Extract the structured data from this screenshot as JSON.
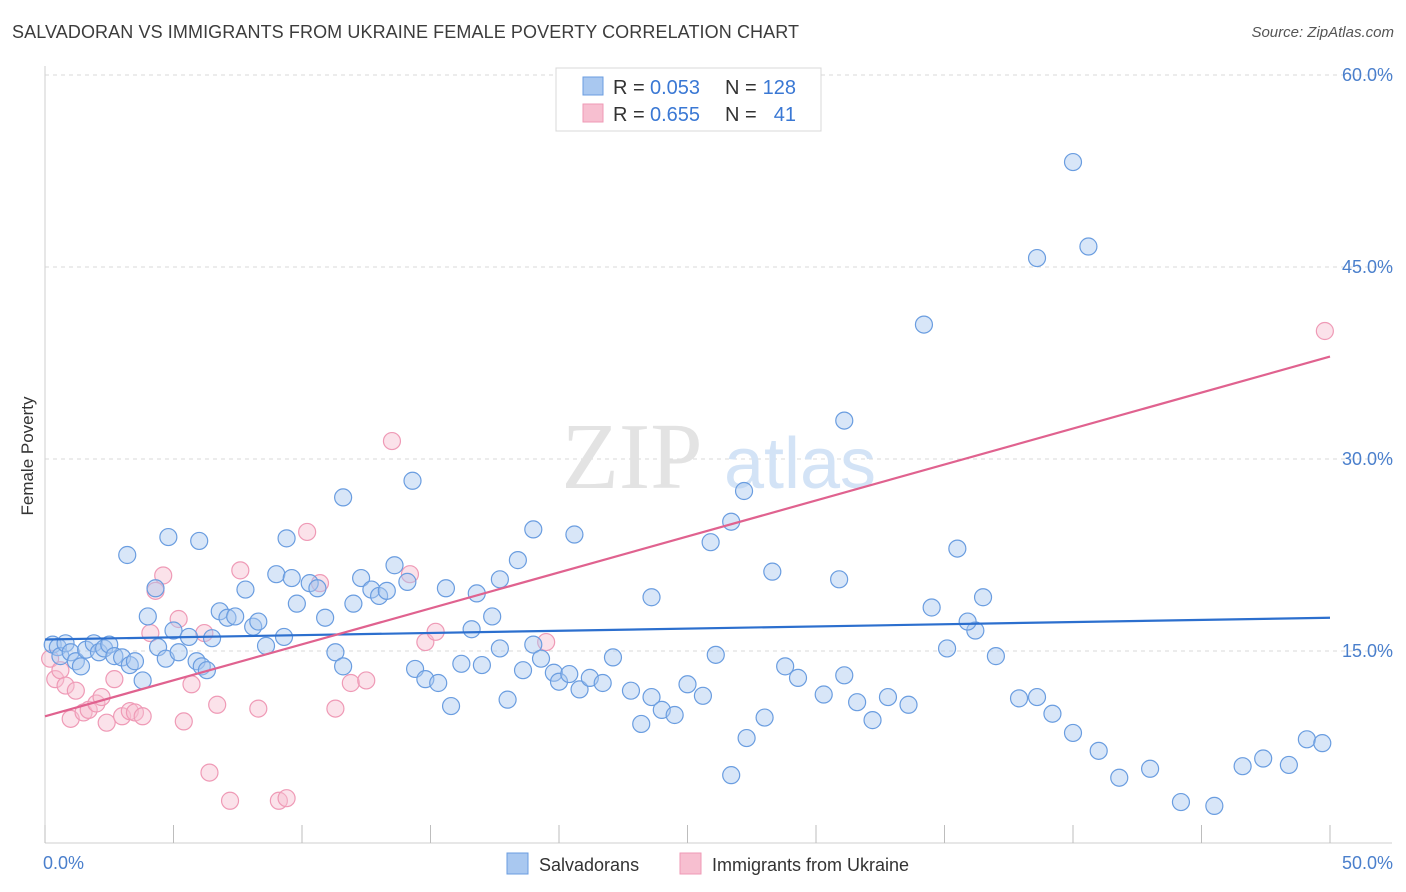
{
  "title": "SALVADORAN VS IMMIGRANTS FROM UKRAINE FEMALE POVERTY CORRELATION CHART",
  "source": "Source: ZipAtlas.com",
  "watermark": {
    "zip": "ZIP",
    "atlas": "atlas"
  },
  "colors": {
    "blue_fill": "#a9c8f0",
    "blue_stroke": "#6a9de0",
    "blue_line": "#2c6fce",
    "pink_fill": "#f7bfd0",
    "pink_stroke": "#ef9ab6",
    "pink_line": "#e0628f",
    "grid": "#d9d9d9",
    "axis_text": "#4a7fcc"
  },
  "legend": {
    "rows": [
      {
        "r_label": "R =",
        "r_value": "0.053",
        "n_label": "N =",
        "n_value": "128",
        "series": "blue"
      },
      {
        "r_label": "R =",
        "r_value": "0.655",
        "n_label": "N =",
        "n_value": "41",
        "series": "pink"
      }
    ]
  },
  "chart_data": {
    "type": "scatter",
    "title": "SALVADORAN VS IMMIGRANTS FROM UKRAINE FEMALE POVERTY CORRELATION CHART",
    "xlabel": "",
    "ylabel": "Female Poverty",
    "xlim": [
      0,
      50
    ],
    "ylim": [
      0,
      60
    ],
    "x_tick_labels": [
      "0.0%",
      "50.0%"
    ],
    "y_ticks": [
      15,
      30,
      45,
      60
    ],
    "y_tick_labels": [
      "15.0%",
      "30.0%",
      "45.0%",
      "60.0%"
    ],
    "grid": true,
    "legend_position": "top-center",
    "series": [
      {
        "name": "Salvadorans",
        "color": "blue",
        "r": 0.053,
        "n": 128,
        "trend": [
          [
            0,
            15.9
          ],
          [
            50,
            17.6
          ]
        ],
        "points": [
          [
            0.3,
            15.5
          ],
          [
            0.5,
            15.3
          ],
          [
            0.6,
            14.6
          ],
          [
            0.8,
            15.6
          ],
          [
            1.0,
            14.9
          ],
          [
            1.2,
            14.2
          ],
          [
            1.4,
            13.8
          ],
          [
            1.6,
            15.1
          ],
          [
            1.9,
            15.6
          ],
          [
            2.1,
            14.9
          ],
          [
            2.3,
            15.2
          ],
          [
            2.5,
            15.5
          ],
          [
            2.7,
            14.6
          ],
          [
            3.0,
            14.5
          ],
          [
            3.3,
            13.9
          ],
          [
            3.5,
            14.2
          ],
          [
            3.8,
            12.7
          ],
          [
            4.0,
            17.7
          ],
          [
            4.3,
            19.9
          ],
          [
            4.4,
            15.3
          ],
          [
            4.7,
            14.4
          ],
          [
            5.0,
            16.6
          ],
          [
            5.2,
            14.9
          ],
          [
            5.6,
            16.1
          ],
          [
            5.9,
            14.2
          ],
          [
            6.1,
            13.8
          ],
          [
            6.3,
            13.5
          ],
          [
            6.5,
            16.0
          ],
          [
            6.8,
            18.1
          ],
          [
            7.1,
            17.6
          ],
          [
            7.4,
            17.7
          ],
          [
            7.8,
            19.8
          ],
          [
            8.1,
            16.9
          ],
          [
            8.3,
            17.3
          ],
          [
            8.6,
            15.4
          ],
          [
            9.0,
            21.0
          ],
          [
            9.3,
            16.1
          ],
          [
            9.6,
            20.7
          ],
          [
            9.8,
            18.7
          ],
          [
            10.3,
            20.3
          ],
          [
            10.6,
            19.9
          ],
          [
            10.9,
            17.6
          ],
          [
            11.3,
            14.9
          ],
          [
            11.6,
            13.8
          ],
          [
            12.0,
            18.7
          ],
          [
            12.3,
            20.7
          ],
          [
            12.7,
            19.8
          ],
          [
            13.0,
            19.3
          ],
          [
            13.3,
            19.7
          ],
          [
            13.6,
            21.7
          ],
          [
            14.1,
            20.4
          ],
          [
            14.4,
            13.6
          ],
          [
            14.8,
            12.8
          ],
          [
            15.3,
            12.5
          ],
          [
            15.8,
            10.7
          ],
          [
            16.2,
            14.0
          ],
          [
            16.6,
            16.7
          ],
          [
            17.0,
            13.9
          ],
          [
            17.4,
            17.7
          ],
          [
            17.7,
            15.2
          ],
          [
            18.0,
            11.2
          ],
          [
            18.6,
            13.5
          ],
          [
            19.0,
            15.5
          ],
          [
            19.3,
            14.4
          ],
          [
            19.8,
            13.3
          ],
          [
            20.0,
            12.6
          ],
          [
            20.4,
            13.2
          ],
          [
            20.8,
            12.0
          ],
          [
            21.2,
            12.9
          ],
          [
            21.7,
            12.5
          ],
          [
            22.1,
            14.5
          ],
          [
            22.8,
            11.9
          ],
          [
            23.2,
            9.3
          ],
          [
            23.6,
            11.4
          ],
          [
            24.0,
            10.4
          ],
          [
            24.5,
            10.0
          ],
          [
            25.0,
            12.4
          ],
          [
            25.6,
            11.5
          ],
          [
            26.1,
            14.7
          ],
          [
            26.7,
            5.3
          ],
          [
            27.3,
            8.2
          ],
          [
            28.0,
            9.8
          ],
          [
            28.8,
            13.8
          ],
          [
            29.3,
            12.9
          ],
          [
            30.3,
            11.6
          ],
          [
            31.1,
            13.1
          ],
          [
            31.6,
            11.0
          ],
          [
            32.2,
            9.6
          ],
          [
            32.8,
            11.4
          ],
          [
            33.6,
            10.8
          ],
          [
            34.5,
            18.4
          ],
          [
            35.1,
            15.2
          ],
          [
            36.2,
            16.6
          ],
          [
            37.0,
            14.6
          ],
          [
            37.9,
            11.3
          ],
          [
            38.6,
            11.4
          ],
          [
            39.2,
            10.1
          ],
          [
            40.0,
            8.6
          ],
          [
            41.0,
            7.2
          ],
          [
            41.8,
            5.1
          ],
          [
            43.0,
            5.8
          ],
          [
            44.2,
            3.2
          ],
          [
            45.5,
            2.9
          ],
          [
            46.6,
            6.0
          ],
          [
            47.4,
            6.6
          ],
          [
            48.4,
            6.1
          ],
          [
            49.1,
            8.1
          ],
          [
            49.7,
            7.8
          ],
          [
            3.2,
            22.5
          ],
          [
            4.8,
            23.9
          ],
          [
            6.0,
            23.6
          ],
          [
            9.4,
            23.8
          ],
          [
            11.6,
            27.0
          ],
          [
            14.3,
            28.3
          ],
          [
            15.6,
            19.9
          ],
          [
            16.8,
            19.5
          ],
          [
            17.7,
            20.6
          ],
          [
            18.4,
            22.1
          ],
          [
            19.0,
            24.5
          ],
          [
            20.6,
            24.1
          ],
          [
            25.9,
            23.5
          ],
          [
            27.2,
            27.5
          ],
          [
            31.1,
            33.0
          ],
          [
            34.2,
            40.5
          ],
          [
            38.6,
            45.7
          ],
          [
            40.6,
            46.6
          ],
          [
            40.0,
            53.2
          ],
          [
            23.6,
            19.2
          ],
          [
            26.7,
            25.1
          ],
          [
            28.3,
            21.2
          ],
          [
            30.9,
            20.6
          ],
          [
            35.5,
            23.0
          ],
          [
            35.9,
            17.3
          ],
          [
            36.5,
            19.2
          ]
        ]
      },
      {
        "name": "Immigrants from Ukraine",
        "color": "pink",
        "r": 0.655,
        "n": 41,
        "trend": [
          [
            0,
            9.9
          ],
          [
            50,
            38.0
          ]
        ],
        "points": [
          [
            0.2,
            14.4
          ],
          [
            0.4,
            12.8
          ],
          [
            0.6,
            13.5
          ],
          [
            0.8,
            12.3
          ],
          [
            1.0,
            9.7
          ],
          [
            1.2,
            11.9
          ],
          [
            1.5,
            10.2
          ],
          [
            1.7,
            10.4
          ],
          [
            2.0,
            10.9
          ],
          [
            2.2,
            11.4
          ],
          [
            2.4,
            9.4
          ],
          [
            2.7,
            12.8
          ],
          [
            3.0,
            9.9
          ],
          [
            3.3,
            10.3
          ],
          [
            3.5,
            10.2
          ],
          [
            3.8,
            9.9
          ],
          [
            4.1,
            16.4
          ],
          [
            4.3,
            19.7
          ],
          [
            4.6,
            20.9
          ],
          [
            5.2,
            17.5
          ],
          [
            5.4,
            9.5
          ],
          [
            5.7,
            12.4
          ],
          [
            6.2,
            16.4
          ],
          [
            6.4,
            5.5
          ],
          [
            6.7,
            10.8
          ],
          [
            7.2,
            3.3
          ],
          [
            7.6,
            21.3
          ],
          [
            8.3,
            10.5
          ],
          [
            9.1,
            3.3
          ],
          [
            9.4,
            3.5
          ],
          [
            10.2,
            24.3
          ],
          [
            10.7,
            20.3
          ],
          [
            11.3,
            10.5
          ],
          [
            11.9,
            12.5
          ],
          [
            12.5,
            12.7
          ],
          [
            13.5,
            31.4
          ],
          [
            14.2,
            21.0
          ],
          [
            14.8,
            15.7
          ],
          [
            15.2,
            16.5
          ],
          [
            19.5,
            15.7
          ],
          [
            49.8,
            40.0
          ]
        ]
      }
    ]
  },
  "bottom_legend": [
    {
      "label": "Salvadorans",
      "series": "blue"
    },
    {
      "label": "Immigrants from Ukraine",
      "series": "pink"
    }
  ]
}
